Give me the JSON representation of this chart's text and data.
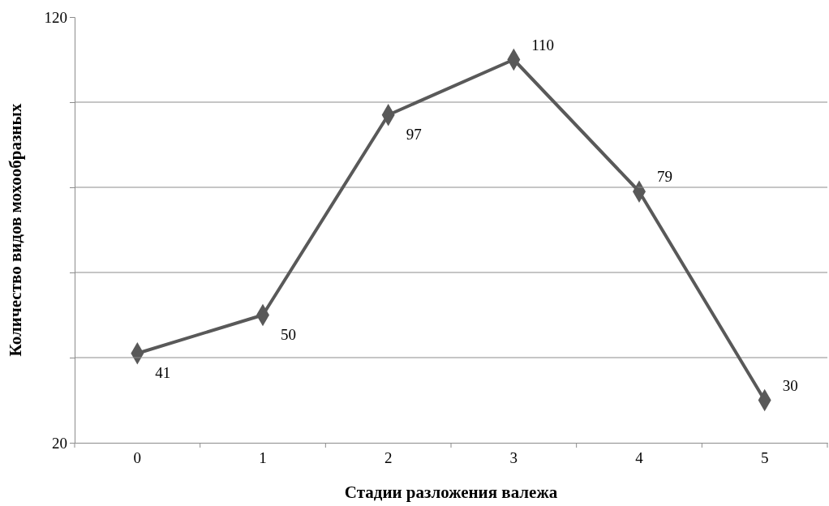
{
  "chart_data": {
    "type": "line",
    "xlabel": "Стадии разложения валежа",
    "ylabel": "Количество видов мохообразных",
    "categories": [
      "0",
      "1",
      "2",
      "3",
      "4",
      "5"
    ],
    "series": [
      {
        "color": "#595959",
        "values": [
          41,
          50,
          97,
          110,
          79,
          30
        ]
      }
    ],
    "ylim": [
      20,
      120
    ],
    "yticks": [
      20,
      {
        "value": 40,
        "label": null
      },
      {
        "value": 60,
        "label": null
      },
      {
        "value": 80,
        "label": null
      },
      {
        "value": 100,
        "label": null
      },
      120
    ],
    "grid": "y",
    "marker": "diamond",
    "line_style": "solid",
    "data_labels": true
  }
}
